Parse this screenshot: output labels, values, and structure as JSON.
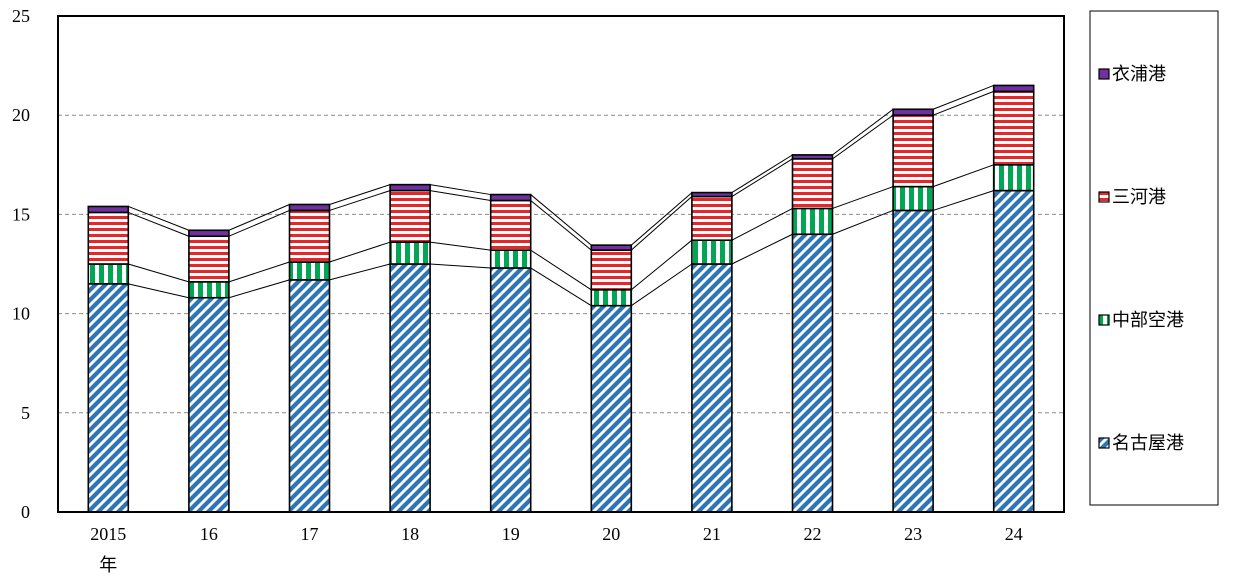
{
  "chart_data": {
    "type": "bar",
    "stacked": true,
    "title": "",
    "xlabel": "",
    "ylabel": "",
    "x_first_suffix": "年",
    "categories": [
      "2015",
      "16",
      "17",
      "18",
      "19",
      "20",
      "21",
      "22",
      "23",
      "24"
    ],
    "ylim": [
      0,
      25
    ],
    "yticks": [
      0,
      5,
      10,
      15,
      20,
      25
    ],
    "grid": "horizontal-dashed",
    "legend_position": "right",
    "series_lines": true,
    "series": [
      {
        "name": "名古屋港",
        "color": "#2e75b6",
        "pattern": "diagonal-stripes",
        "values": [
          11.5,
          10.8,
          11.7,
          12.5,
          12.3,
          10.4,
          12.5,
          14.0,
          15.2,
          16.2
        ]
      },
      {
        "name": "中部空港",
        "color": "#00a651",
        "pattern": "vertical-stripes",
        "values": [
          1.0,
          0.8,
          0.9,
          1.1,
          0.9,
          0.8,
          1.2,
          1.3,
          1.2,
          1.3
        ]
      },
      {
        "name": "三河港",
        "color": "#e8262a",
        "pattern": "horizontal-stripes",
        "values": [
          2.6,
          2.3,
          2.6,
          2.6,
          2.5,
          2.0,
          2.2,
          2.5,
          3.6,
          3.7
        ]
      },
      {
        "name": "衣浦港",
        "color": "#7030a0",
        "pattern": "solid",
        "values": [
          0.3,
          0.3,
          0.3,
          0.3,
          0.3,
          0.25,
          0.2,
          0.2,
          0.3,
          0.3
        ]
      }
    ]
  }
}
